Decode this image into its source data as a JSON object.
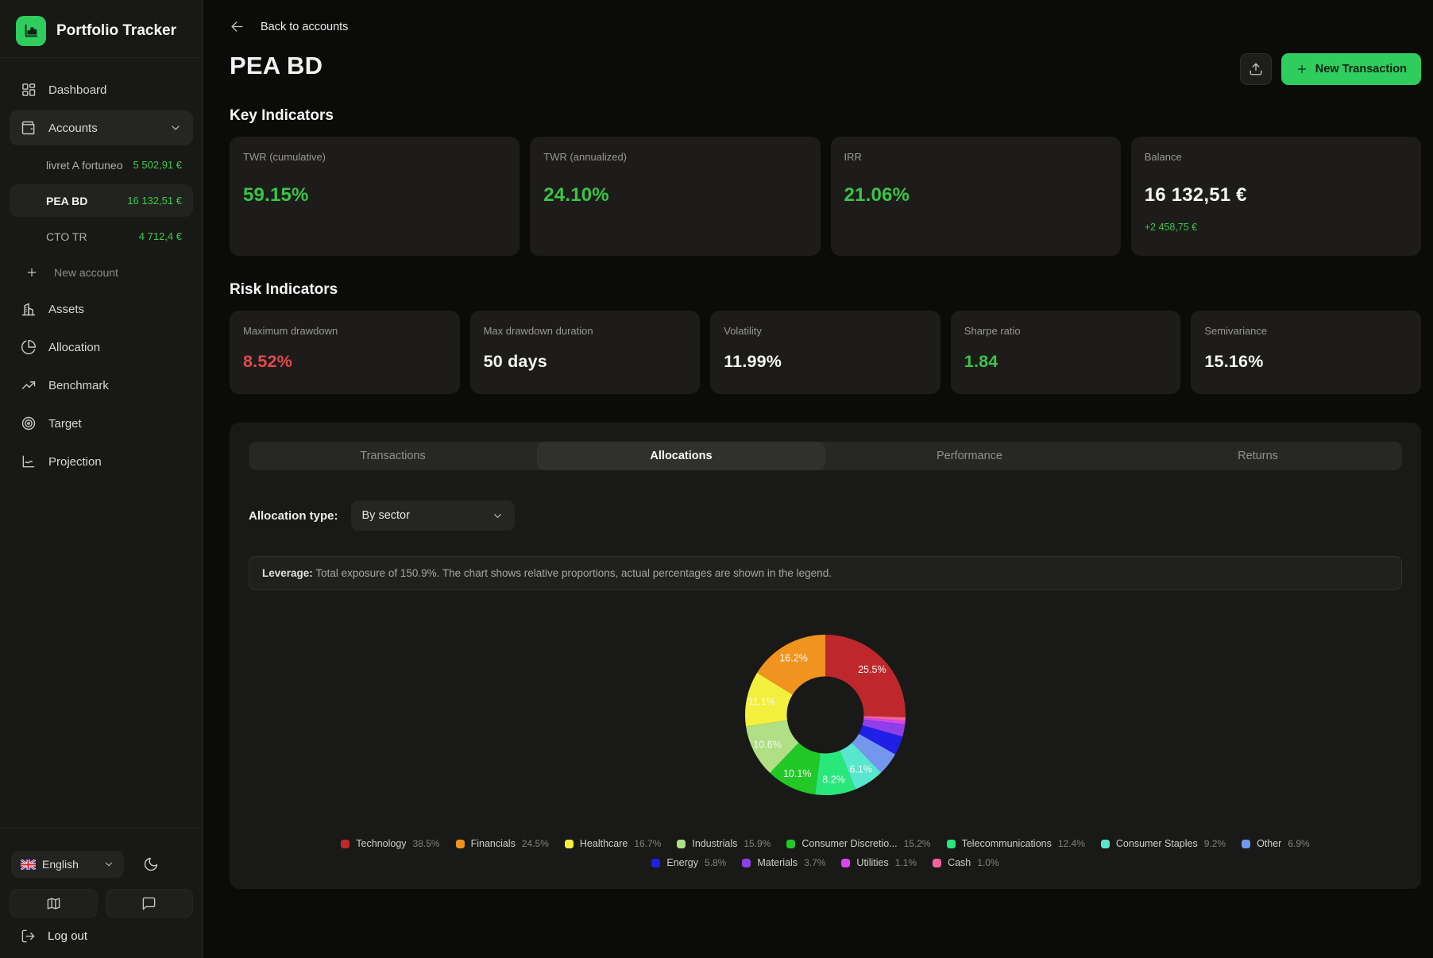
{
  "colors": {
    "accent_green": "#2fcc5e",
    "positive_green": "#3bc447",
    "negative_red": "#e5484d",
    "sidebar_bg": "#181816",
    "card_bg": "#1d1c1a",
    "page_bg": "#0b0b0a"
  },
  "sidebar": {
    "brand": "Portfolio Tracker",
    "dashboard": "Dashboard",
    "accounts_label": "Accounts",
    "accounts": [
      {
        "name": "livret A fortuneo",
        "value": "5 502,91 €"
      },
      {
        "name": "PEA BD",
        "value": "16 132,51 €"
      },
      {
        "name": "CTO TR",
        "value": "4 712,4 €"
      }
    ],
    "new_account": "New account",
    "assets": "Assets",
    "allocation": "Allocation",
    "benchmark": "Benchmark",
    "target": "Target",
    "projection": "Projection",
    "language": "English",
    "logout": "Log out"
  },
  "header": {
    "back": "Back to accounts",
    "title": "PEA BD",
    "new_transaction": "New Transaction"
  },
  "key_indicators": {
    "title": "Key Indicators",
    "cards": [
      {
        "label": "TWR (cumulative)",
        "value": "59.15%",
        "tone": "green"
      },
      {
        "label": "TWR (annualized)",
        "value": "24.10%",
        "tone": "green"
      },
      {
        "label": "IRR",
        "value": "21.06%",
        "tone": "green"
      },
      {
        "label": "Balance",
        "value": "16 132,51 €",
        "tone": "white",
        "sub": "+2 458,75 €",
        "sub_tone": "green"
      }
    ]
  },
  "risk_indicators": {
    "title": "Risk Indicators",
    "cards": [
      {
        "label": "Maximum drawdown",
        "value": "8.52%",
        "tone": "red"
      },
      {
        "label": "Max drawdown duration",
        "value": "50 days",
        "tone": "white"
      },
      {
        "label": "Volatility",
        "value": "11.99%",
        "tone": "white"
      },
      {
        "label": "Sharpe ratio",
        "value": "1.84",
        "tone": "green"
      },
      {
        "label": "Semivariance",
        "value": "15.16%",
        "tone": "white"
      }
    ]
  },
  "panel": {
    "tabs": [
      {
        "label": "Transactions"
      },
      {
        "label": "Allocations"
      },
      {
        "label": "Performance"
      },
      {
        "label": "Returns"
      }
    ],
    "active_tab": "Allocations",
    "allocation_type_label": "Allocation type:",
    "allocation_type_value": "By sector",
    "leverage_label": "Leverage:",
    "leverage_text": "Total exposure of 150.9%. The chart shows relative proportions, actual percentages are shown in the legend."
  },
  "chart_data": {
    "type": "pie",
    "subtype": "donut",
    "total_exposure": "150.9%",
    "start": "top",
    "inner_radius_ratio": 0.48,
    "legend_position": "bottom",
    "slices": [
      {
        "name": "Technology",
        "legend_value": "38.5%",
        "relative_pct": 25.5,
        "label": "25.5%",
        "color": "#be282d"
      },
      {
        "name": "Financials",
        "legend_value": "24.5%",
        "relative_pct": 16.2,
        "label": "16.2%",
        "color": "#f0941f"
      },
      {
        "name": "Healthcare",
        "legend_value": "16.7%",
        "relative_pct": 11.1,
        "label": "11.1%",
        "color": "#f3ef3d"
      },
      {
        "name": "Industrials",
        "legend_value": "15.9%",
        "relative_pct": 10.6,
        "label": "10.6%",
        "color": "#b0df85"
      },
      {
        "name": "Consumer Discretio...",
        "legend_value": "15.2%",
        "relative_pct": 10.1,
        "label": "10.1%",
        "color": "#22c828"
      },
      {
        "name": "Telecommunications",
        "legend_value": "12.4%",
        "relative_pct": 8.2,
        "label": "8.2%",
        "color": "#29e87b"
      },
      {
        "name": "Consumer Staples",
        "legend_value": "9.2%",
        "relative_pct": 6.1,
        "label": "6.1%",
        "color": "#58e6cf"
      },
      {
        "name": "Other",
        "legend_value": "6.9%",
        "relative_pct": 4.6,
        "label": "",
        "color": "#7596ee"
      },
      {
        "name": "Energy",
        "legend_value": "5.8%",
        "relative_pct": 3.8,
        "label": "",
        "color": "#1f1fe8"
      },
      {
        "name": "Materials",
        "legend_value": "3.7%",
        "relative_pct": 2.5,
        "label": "",
        "color": "#8f3fe8"
      },
      {
        "name": "Utilities",
        "legend_value": "1.1%",
        "relative_pct": 0.7,
        "label": "",
        "color": "#d944ef"
      },
      {
        "name": "Cash",
        "legend_value": "1.0%",
        "relative_pct": 0.7,
        "label": "",
        "color": "#f2639c"
      }
    ]
  }
}
